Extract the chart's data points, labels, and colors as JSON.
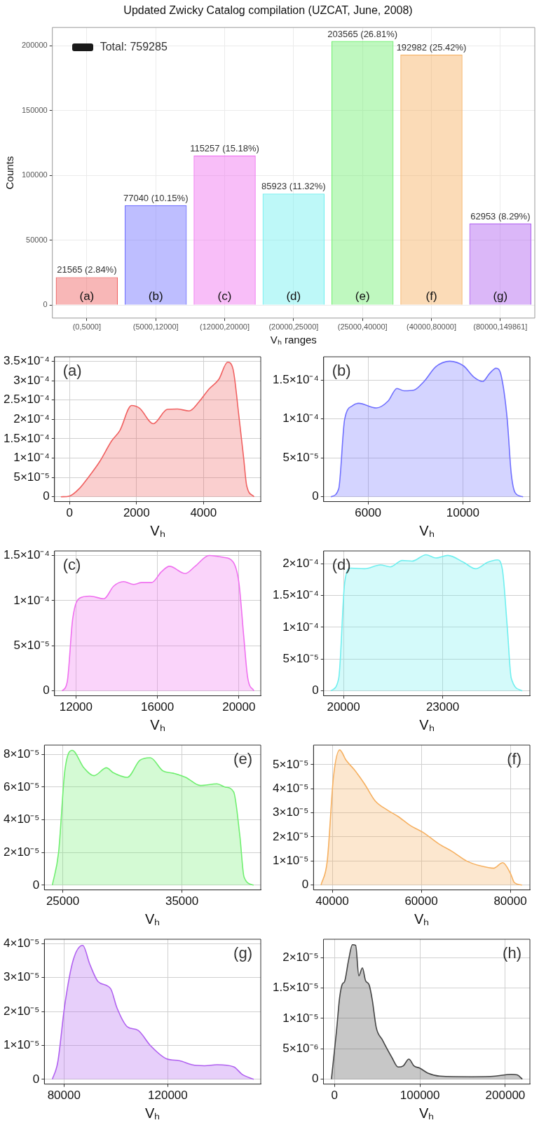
{
  "chart_data": [
    {
      "type": "bar",
      "title": "Updated Zwicky Catalog compilation (UZCAT, June, 2008)",
      "xlabel": "Vₕ ranges",
      "ylabel": "Counts",
      "categories": [
        "(0,5000]",
        "(5000,12000]",
        "(12000,20000]",
        "(20000,25000]",
        "(25000,40000]",
        "(40000,80000]",
        "(80000,149861]"
      ],
      "series": [
        {
          "colors": [
            "#f06060",
            "#6f6fff",
            "#ef6fef",
            "#6fefef",
            "#70ef70",
            "#f6b060",
            "#b060f0"
          ],
          "values": [
            21565,
            77040,
            115257,
            85923,
            203565,
            192982,
            62953
          ],
          "value_labels": [
            "21565 (2.84%)",
            "77040 (10.15%)",
            "115257 (15.18%)",
            "85923 (11.32%)",
            "203565 (26.81%)",
            "192982 (25.42%)",
            "62953 (8.29%)"
          ]
        }
      ],
      "ylim": [
        -10000,
        214000
      ],
      "yticks": [
        0,
        50000,
        100000,
        150000,
        200000
      ],
      "grid": true,
      "annotations": [
        "(a)",
        "(b)",
        "(c)",
        "(d)",
        "(e)",
        "(f)",
        "(g)",
        "Total: 759285"
      ]
    },
    {
      "type": "area",
      "xlabel": "Vₕ",
      "color": "#f06060",
      "annotations": [
        "(a)"
      ],
      "grid": true,
      "x": [
        -260,
        0,
        300,
        550,
        900,
        1260,
        1500,
        1850,
        2090,
        2500,
        2920,
        3220,
        3570,
        3870,
        4170,
        4460,
        4720,
        4880,
        5060,
        5200,
        5290,
        5510
      ],
      "values": [
        0,
        2e-06,
        2.2e-05,
        4.9e-05,
        9.1e-05,
        0.000145,
        0.000171,
        0.000236,
        0.000229,
        0.000189,
        0.000226,
        0.000227,
        0.000222,
        0.000246,
        0.000279,
        0.000304,
        0.000348,
        0.000331,
        0.000207,
        0.0001,
        2.9e-05,
        0
      ],
      "xlim": [
        -450,
        5710
      ],
      "ylim": [
        -1.24e-05,
        0.000362
      ],
      "xticks": [
        0,
        2000,
        4000
      ],
      "yticks": [
        {
          "value": 0,
          "label": "0"
        },
        {
          "value": 5e-05,
          "label": "5×10⁻⁵"
        },
        {
          "value": 0.0001,
          "label": "1×10⁻⁴"
        },
        {
          "value": 0.00015,
          "label": "1.5×10⁻⁴"
        },
        {
          "value": 0.0002,
          "label": "2×10⁻⁴"
        },
        {
          "value": 0.00025,
          "label": "2.5×10⁻⁴"
        },
        {
          "value": 0.0003,
          "label": "3×10⁻⁴"
        },
        {
          "value": 0.00035,
          "label": "3.5×10⁻⁴"
        }
      ]
    },
    {
      "type": "area",
      "xlabel": "Vₕ",
      "color": "#6f6fff",
      "annotations": [
        "(b)"
      ],
      "grid": true,
      "x": [
        4430,
        4760,
        5010,
        5350,
        5600,
        6350,
        6850,
        7220,
        7520,
        7940,
        8360,
        8860,
        9450,
        10030,
        10450,
        10840,
        11120,
        11400,
        11620,
        11870,
        12040,
        12210,
        12540
      ],
      "values": [
        0,
        1e-05,
        9.9e-05,
        0.000117,
        0.00012,
        0.000114,
        0.000123,
        0.000139,
        0.000136,
        0.000137,
        0.000148,
        0.000167,
        0.000174,
        0.000168,
        0.000154,
        0.000148,
        0.000158,
        0.000165,
        0.000155,
        0.0001,
        3e-05,
        5e-06,
        0
      ],
      "xlim": [
        4126,
        12828
      ],
      "ylim": [
        -6.2e-06,
        0.0001797
      ],
      "xticks": [
        6000,
        10000
      ],
      "yticks": [
        {
          "value": 0,
          "label": "0"
        },
        {
          "value": 5e-05,
          "label": "5×10⁻⁵"
        },
        {
          "value": 0.0001,
          "label": "1×10⁻⁴"
        },
        {
          "value": 0.00015,
          "label": "1.5×10⁻⁴"
        }
      ]
    },
    {
      "type": "area",
      "xlabel": "Vₕ",
      "color": "#ef6fef",
      "annotations": [
        "(c)"
      ],
      "grid": true,
      "x": [
        11317,
        11570,
        11840,
        12200,
        12680,
        13370,
        13850,
        14340,
        14830,
        15220,
        15710,
        16200,
        16590,
        17370,
        17850,
        18540,
        19220,
        19710,
        20000,
        20240,
        20430,
        20740
      ],
      "values": [
        0,
        1e-05,
        8e-05,
        0.000103,
        0.000105,
        0.000102,
        0.000116,
        0.000121,
        0.000118,
        0.00012,
        0.00012,
        0.000132,
        0.000138,
        0.00013,
        0.000138,
        0.00015,
        0.000148,
        0.000143,
        0.00012,
        6e-05,
        1.5e-05,
        0
      ],
      "xlim": [
        10946,
        21073
      ],
      "ylim": [
        -5.3e-06,
        0.000155
      ],
      "xticks": [
        12000,
        16000,
        20000
      ],
      "yticks": [
        {
          "value": 0,
          "label": "0"
        },
        {
          "value": 5e-05,
          "label": "5×10⁻⁵"
        },
        {
          "value": 0.0001,
          "label": "1×10⁻⁴"
        },
        {
          "value": 0.00015,
          "label": "1.5×10⁻⁴"
        }
      ]
    },
    {
      "type": "area",
      "xlabel": "Vₕ",
      "color": "#6fefef",
      "annotations": [
        "(d)"
      ],
      "grid": true,
      "x": [
        19616,
        19856,
        20036,
        20216,
        20636,
        21116,
        21416,
        21776,
        22076,
        22496,
        22796,
        23156,
        23636,
        23996,
        24356,
        24656,
        24810,
        24956,
        25076,
        25410
      ],
      "values": [
        0,
        2e-05,
        0.00017,
        0.000193,
        0.000192,
        0.000198,
        0.000195,
        0.000205,
        0.000204,
        0.000214,
        0.000209,
        0.000213,
        0.000202,
        0.000192,
        0.000202,
        0.000206,
        0.00019,
        0.0001,
        2e-05,
        0
      ],
      "xlim": [
        19400,
        25640
      ],
      "ylim": [
        -7.6e-06,
        0.00022
      ],
      "xticks": [
        20000,
        23000
      ],
      "yticks": [
        {
          "value": 0,
          "label": "0"
        },
        {
          "value": 5e-05,
          "label": "5×10⁻⁵"
        },
        {
          "value": 0.0001,
          "label": "1×10⁻⁴"
        },
        {
          "value": 0.00015,
          "label": "1.5×10⁻⁴"
        },
        {
          "value": 0.0002,
          "label": "2×10⁻⁴"
        }
      ]
    },
    {
      "type": "area",
      "xlabel": "Vₕ",
      "color": "#70ef70",
      "annotations": [
        "(e)"
      ],
      "grid": true,
      "x": [
        24126,
        24650,
        25175,
        25800,
        26750,
        27620,
        28670,
        29200,
        30420,
        31470,
        32340,
        33390,
        34270,
        35310,
        36540,
        37940,
        38640,
        39340,
        39860,
        40210,
        41010
      ],
      "values": [
        0,
        2e-05,
        7e-05,
        8.25e-05,
        7.2e-05,
        6.7e-05,
        7.18e-05,
        6.9e-05,
        6.6e-05,
        7.64e-05,
        7.8e-05,
        7e-05,
        6.85e-05,
        6.6e-05,
        6.1e-05,
        6.2e-05,
        6e-05,
        5.7e-05,
        3e-05,
        5e-06,
        0
      ],
      "xlim": [
        23460,
        41610
      ],
      "ylim": [
        -2.9e-06,
        8.57e-05
      ],
      "xticks": [
        25000,
        35000
      ],
      "yticks": [
        {
          "value": 0,
          "label": "0"
        },
        {
          "value": 2e-05,
          "label": "2×10⁻⁵"
        },
        {
          "value": 4e-05,
          "label": "4×10⁻⁵"
        },
        {
          "value": 6e-05,
          "label": "6×10⁻⁵"
        },
        {
          "value": 8e-05,
          "label": "8×10⁻⁵"
        }
      ]
    },
    {
      "type": "area",
      "xlabel": "Vₕ",
      "color": "#f6b060",
      "annotations": [
        "(f)"
      ],
      "grid": true,
      "x": [
        37480,
        38880,
        40280,
        41680,
        43080,
        44950,
        47290,
        49630,
        52430,
        54770,
        57570,
        60370,
        64110,
        66900,
        70180,
        73450,
        76260,
        78310,
        80000,
        80930,
        82620
      ],
      "values": [
        0,
        1e-05,
        4.5e-05,
        5.61e-05,
        5.19e-05,
        4.79e-05,
        4.19e-05,
        3.5e-05,
        3.11e-05,
        2.85e-05,
        2.47e-05,
        2.19e-05,
        1.69e-05,
        1.4e-05,
        1e-05,
        7.9e-06,
        7e-06,
        9.3e-06,
        5e-06,
        1e-06,
        0
      ],
      "xlim": [
        35800,
        84400
      ],
      "ylim": [
        -2e-06,
        5.81e-05
      ],
      "xticks": [
        40000,
        60000,
        80000
      ],
      "yticks": [
        {
          "value": 0,
          "label": "0"
        },
        {
          "value": 1e-05,
          "label": "1×10⁻⁵"
        },
        {
          "value": 2e-05,
          "label": "2×10⁻⁵"
        },
        {
          "value": 3e-05,
          "label": "3×10⁻⁵"
        },
        {
          "value": 4e-05,
          "label": "4×10⁻⁵"
        },
        {
          "value": 5e-05,
          "label": "5×10⁻⁵"
        }
      ]
    },
    {
      "type": "area",
      "xlabel": "Vₕ",
      "color": "#b060f0",
      "annotations": [
        "(g)"
      ],
      "grid": true,
      "x": [
        75500,
        77590,
        80320,
        83530,
        87230,
        89960,
        93170,
        97990,
        100400,
        104420,
        108430,
        113250,
        119680,
        124500,
        129320,
        134140,
        138960,
        145390,
        148600,
        153100
      ],
      "values": [
        0,
        5e-06,
        2.2e-05,
        3.51e-05,
        3.95e-05,
        3.39e-05,
        2.88e-05,
        2.67e-05,
        2.11e-05,
        1.55e-05,
        1.45e-05,
        1e-05,
        6e-06,
        5.5e-06,
        4.3e-06,
        4e-06,
        4.3e-06,
        3.7e-06,
        1.5e-06,
        0
      ],
      "xlim": [
        72450,
        155820
      ],
      "ylim": [
        -1.4e-06,
        4.13e-05
      ],
      "xticks": [
        80000,
        120000
      ],
      "yticks": [
        {
          "value": 0,
          "label": "0"
        },
        {
          "value": 1e-05,
          "label": "1×10⁻⁵"
        },
        {
          "value": 2e-05,
          "label": "2×10⁻⁵"
        },
        {
          "value": 3e-05,
          "label": "3×10⁻⁵"
        },
        {
          "value": 4e-05,
          "label": "4×10⁻⁵"
        }
      ]
    },
    {
      "type": "area",
      "xlabel": "Vₕ",
      "color": "#444444",
      "annotations": [
        "(h)"
      ],
      "grid": true,
      "x": [
        -3700,
        2300,
        6000,
        9300,
        11600,
        16300,
        20900,
        24700,
        28400,
        32600,
        36300,
        40500,
        44200,
        48800,
        55800,
        67400,
        74400,
        80500,
        87000,
        93000,
        100000,
        109300,
        123300,
        160500,
        188400,
        207000,
        214000,
        220000
      ],
      "values": [
        0,
        8e-06,
        1.35e-05,
        1.57e-05,
        1.6e-05,
        1.95e-05,
        2.21e-05,
        2.2e-05,
        1.7e-05,
        1.83e-05,
        1.62e-05,
        1.55e-05,
        1.3e-05,
        8.5e-06,
        6.5e-06,
        3.5e-06,
        2e-06,
        2.2e-06,
        3.3e-06,
        2.2e-06,
        1.8e-06,
        1e-06,
        5e-07,
        4e-07,
        5e-07,
        8e-07,
        7e-07,
        0
      ],
      "xlim": [
        -13000,
        228800
      ],
      "ylim": [
        -8e-07,
        2.3e-05
      ],
      "xticks": [
        0,
        100000,
        200000
      ],
      "yticks": [
        {
          "value": 0,
          "label": "0"
        },
        {
          "value": 5e-06,
          "label": "5×10⁻⁶"
        },
        {
          "value": 1e-05,
          "label": "1×10⁻⁵"
        },
        {
          "value": 1.5e-05,
          "label": "1.5×10⁻⁵"
        },
        {
          "value": 2e-05,
          "label": "2×10⁻⁵"
        }
      ]
    }
  ]
}
